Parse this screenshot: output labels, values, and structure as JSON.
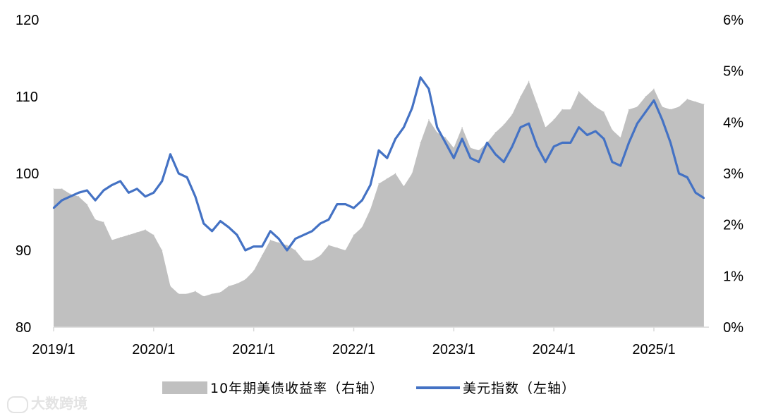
{
  "chart_data": {
    "type": "area+line",
    "title": "",
    "colors": {
      "area": "#c0c0c0",
      "line": "#4472c4",
      "axis": "#d9d9d9"
    },
    "x_range": [
      "2019-01",
      "2025-07"
    ],
    "x_tick_labels": [
      "2019/1",
      "2020/1",
      "2021/1",
      "2022/1",
      "2023/1",
      "2024/1",
      "2025/1"
    ],
    "y_left": {
      "min": 80,
      "max": 120,
      "ticks": [
        "80",
        "90",
        "100",
        "110",
        "120"
      ]
    },
    "y_right": {
      "min": 0,
      "max": 6,
      "ticks": [
        "0%",
        "1%",
        "2%",
        "3%",
        "4%",
        "5%",
        "6%"
      ]
    },
    "legend_position": "bottom",
    "series": [
      {
        "name": "10年期美债收益率（右轴）",
        "axis": "right",
        "kind": "area",
        "x": [
          "2019-01",
          "2019-02",
          "2019-03",
          "2019-04",
          "2019-05",
          "2019-06",
          "2019-07",
          "2019-08",
          "2019-09",
          "2019-10",
          "2019-11",
          "2019-12",
          "2020-01",
          "2020-02",
          "2020-03",
          "2020-04",
          "2020-05",
          "2020-06",
          "2020-07",
          "2020-08",
          "2020-09",
          "2020-10",
          "2020-11",
          "2020-12",
          "2021-01",
          "2021-02",
          "2021-03",
          "2021-04",
          "2021-05",
          "2021-06",
          "2021-07",
          "2021-08",
          "2021-09",
          "2021-10",
          "2021-11",
          "2021-12",
          "2022-01",
          "2022-02",
          "2022-03",
          "2022-04",
          "2022-05",
          "2022-06",
          "2022-07",
          "2022-08",
          "2022-09",
          "2022-10",
          "2022-11",
          "2022-12",
          "2023-01",
          "2023-02",
          "2023-03",
          "2023-04",
          "2023-05",
          "2023-06",
          "2023-07",
          "2023-08",
          "2023-09",
          "2023-10",
          "2023-11",
          "2023-12",
          "2024-01",
          "2024-02",
          "2024-03",
          "2024-04",
          "2024-05",
          "2024-06",
          "2024-07",
          "2024-08",
          "2024-09",
          "2024-10",
          "2024-11",
          "2024-12",
          "2025-01",
          "2025-02",
          "2025-03",
          "2025-04",
          "2025-05",
          "2025-06",
          "2025-07"
        ],
        "values": [
          2.7,
          2.7,
          2.6,
          2.55,
          2.4,
          2.1,
          2.05,
          1.7,
          1.75,
          1.8,
          1.85,
          1.9,
          1.8,
          1.5,
          0.8,
          0.65,
          0.65,
          0.7,
          0.6,
          0.65,
          0.68,
          0.8,
          0.85,
          0.93,
          1.1,
          1.4,
          1.7,
          1.65,
          1.6,
          1.5,
          1.3,
          1.3,
          1.4,
          1.6,
          1.55,
          1.5,
          1.8,
          1.95,
          2.3,
          2.8,
          2.9,
          3.0,
          2.75,
          3.0,
          3.6,
          4.05,
          3.8,
          3.7,
          3.5,
          3.9,
          3.5,
          3.45,
          3.6,
          3.8,
          3.95,
          4.15,
          4.5,
          4.8,
          4.35,
          3.9,
          4.05,
          4.25,
          4.25,
          4.6,
          4.45,
          4.3,
          4.2,
          3.85,
          3.7,
          4.25,
          4.3,
          4.5,
          4.65,
          4.3,
          4.25,
          4.3,
          4.45,
          4.4,
          4.35
        ]
      },
      {
        "name": "美元指数（左轴）",
        "axis": "left",
        "kind": "line",
        "x": [
          "2019-01",
          "2019-02",
          "2019-03",
          "2019-04",
          "2019-05",
          "2019-06",
          "2019-07",
          "2019-08",
          "2019-09",
          "2019-10",
          "2019-11",
          "2019-12",
          "2020-01",
          "2020-02",
          "2020-03",
          "2020-04",
          "2020-05",
          "2020-06",
          "2020-07",
          "2020-08",
          "2020-09",
          "2020-10",
          "2020-11",
          "2020-12",
          "2021-01",
          "2021-02",
          "2021-03",
          "2021-04",
          "2021-05",
          "2021-06",
          "2021-07",
          "2021-08",
          "2021-09",
          "2021-10",
          "2021-11",
          "2021-12",
          "2022-01",
          "2022-02",
          "2022-03",
          "2022-04",
          "2022-05",
          "2022-06",
          "2022-07",
          "2022-08",
          "2022-09",
          "2022-10",
          "2022-11",
          "2022-12",
          "2023-01",
          "2023-02",
          "2023-03",
          "2023-04",
          "2023-05",
          "2023-06",
          "2023-07",
          "2023-08",
          "2023-09",
          "2023-10",
          "2023-11",
          "2023-12",
          "2024-01",
          "2024-02",
          "2024-03",
          "2024-04",
          "2024-05",
          "2024-06",
          "2024-07",
          "2024-08",
          "2024-09",
          "2024-10",
          "2024-11",
          "2024-12",
          "2025-01",
          "2025-02",
          "2025-03",
          "2025-04",
          "2025-05",
          "2025-06",
          "2025-07"
        ],
        "values": [
          95.5,
          96.5,
          97.0,
          97.5,
          97.8,
          96.5,
          97.8,
          98.5,
          99.0,
          97.5,
          98.0,
          97.0,
          97.5,
          99.0,
          102.5,
          100.0,
          99.5,
          97.0,
          93.5,
          92.5,
          93.8,
          93.0,
          92.0,
          90.0,
          90.5,
          90.5,
          92.5,
          91.5,
          90.0,
          91.5,
          92.0,
          92.5,
          93.5,
          94.0,
          96.0,
          96.0,
          95.5,
          96.5,
          98.5,
          103.0,
          102.0,
          104.5,
          106.0,
          108.5,
          112.5,
          111.0,
          106.0,
          104.0,
          102.0,
          104.5,
          102.0,
          101.5,
          104.0,
          102.5,
          101.5,
          103.5,
          106.0,
          106.5,
          103.5,
          101.5,
          103.5,
          104.0,
          104.0,
          106.0,
          105.0,
          105.5,
          104.5,
          101.5,
          101.0,
          104.0,
          106.5,
          108.0,
          109.5,
          107.0,
          104.0,
          100.0,
          99.5,
          97.5,
          96.8
        ]
      }
    ]
  },
  "watermark": "大数跨境"
}
